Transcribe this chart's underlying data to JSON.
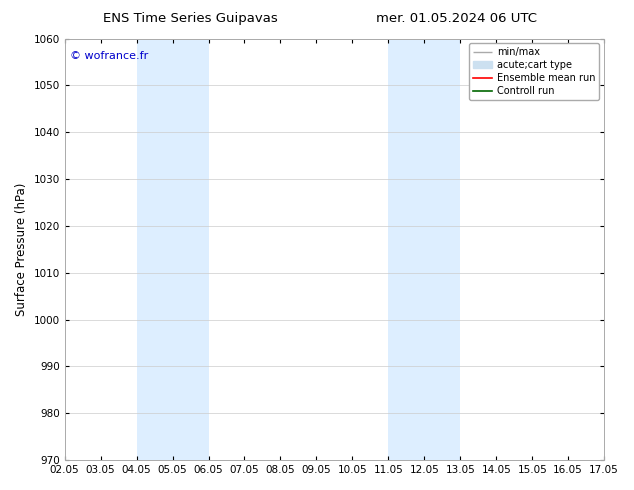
{
  "title_left": "ENS Time Series Guipavas",
  "title_right": "mer. 01.05.2024 06 UTC",
  "ylabel": "Surface Pressure (hPa)",
  "watermark": "© wofrance.fr",
  "watermark_color": "#0000cc",
  "ylim": [
    970,
    1060
  ],
  "yticks": [
    970,
    980,
    990,
    1000,
    1010,
    1020,
    1030,
    1040,
    1050,
    1060
  ],
  "xtick_labels": [
    "02.05",
    "03.05",
    "04.05",
    "05.05",
    "06.05",
    "07.05",
    "08.05",
    "09.05",
    "10.05",
    "11.05",
    "12.05",
    "13.05",
    "14.05",
    "15.05",
    "16.05",
    "17.05"
  ],
  "shaded_bands": [
    {
      "xmin": 2,
      "xmax": 4,
      "color": "#ddeeff"
    },
    {
      "xmin": 9,
      "xmax": 11,
      "color": "#ddeeff"
    }
  ],
  "legend_entries": [
    {
      "label": "min/max",
      "color": "#aaaaaa",
      "lw": 1.0,
      "type": "minmax"
    },
    {
      "label": "acute;cart type",
      "color": "#cce0f0",
      "lw": 8,
      "type": "band"
    },
    {
      "label": "Ensemble mean run",
      "color": "#ff0000",
      "lw": 1.2,
      "type": "line"
    },
    {
      "label": "Controll run",
      "color": "#006600",
      "lw": 1.2,
      "type": "line"
    }
  ],
  "bg_color": "#ffffff",
  "grid_color": "#cccccc",
  "tick_fontsize": 7.5,
  "label_fontsize": 8.5,
  "title_fontsize": 9.5
}
